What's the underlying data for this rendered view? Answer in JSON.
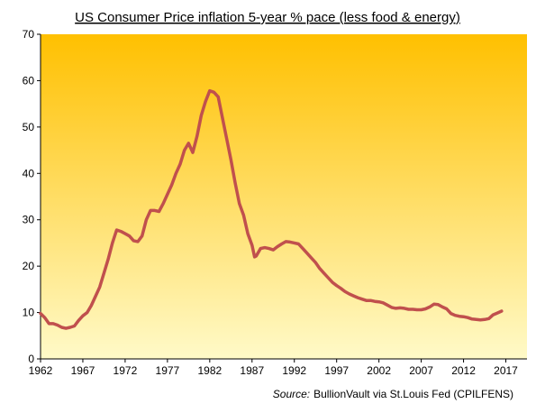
{
  "chart_data": {
    "type": "line",
    "title": "US Consumer Price inflation 5-year % pace (less food & energy)",
    "source_label": "Source:",
    "source_text": "BullionVault via St.Louis Fed (CPILFENS)",
    "xlim": [
      1962,
      2019.5
    ],
    "ylim": [
      0,
      70
    ],
    "x_ticks": [
      "1962",
      "1967",
      "1972",
      "1977",
      "1982",
      "1987",
      "1992",
      "1997",
      "2002",
      "2007",
      "2012",
      "2017"
    ],
    "y_ticks": [
      "0",
      "10",
      "20",
      "30",
      "40",
      "50",
      "60",
      "70"
    ],
    "grid": false,
    "legend": "none",
    "background_gradient": [
      "#ffc000",
      "#fffac8"
    ],
    "series": [
      {
        "color": "#c0504d",
        "x": [
          1962.0,
          1962.5,
          1963.0,
          1963.5,
          1964.0,
          1964.5,
          1965.0,
          1965.5,
          1966.0,
          1966.5,
          1967.0,
          1967.5,
          1968.0,
          1968.5,
          1969.0,
          1969.5,
          1970.0,
          1970.5,
          1971.0,
          1971.5,
          1972.0,
          1972.5,
          1973.0,
          1973.5,
          1974.0,
          1974.5,
          1975.0,
          1975.5,
          1976.0,
          1976.5,
          1977.0,
          1977.5,
          1978.0,
          1978.5,
          1979.0,
          1979.5,
          1980.0,
          1980.5,
          1981.0,
          1981.5,
          1982.0,
          1982.5,
          1983.0,
          1983.5,
          1984.0,
          1984.5,
          1985.0,
          1985.5,
          1986.0,
          1986.5,
          1987.0,
          1987.3,
          1987.5,
          1988.0,
          1988.5,
          1989.0,
          1989.5,
          1990.0,
          1990.5,
          1991.0,
          1991.5,
          1992.0,
          1992.5,
          1993.0,
          1993.5,
          1994.0,
          1994.5,
          1995.0,
          1995.5,
          1996.0,
          1996.5,
          1997.0,
          1997.5,
          1998.0,
          1998.5,
          1999.0,
          1999.5,
          2000.0,
          2000.5,
          2001.0,
          2001.5,
          2002.0,
          2002.5,
          2003.0,
          2003.5,
          2004.0,
          2004.5,
          2005.0,
          2005.5,
          2006.0,
          2006.5,
          2007.0,
          2007.5,
          2008.0,
          2008.5,
          2009.0,
          2009.5,
          2010.0,
          2010.5,
          2011.0,
          2011.5,
          2012.0,
          2012.5,
          2013.0,
          2013.5,
          2014.0,
          2014.5,
          2015.0,
          2015.5,
          2016.0,
          2016.5
        ],
        "y": [
          9.8,
          8.9,
          7.6,
          7.6,
          7.3,
          6.8,
          6.6,
          6.8,
          7.1,
          8.3,
          9.3,
          10.0,
          11.5,
          13.5,
          15.5,
          18.5,
          21.5,
          25.0,
          27.8,
          27.5,
          27.0,
          26.5,
          25.5,
          25.3,
          26.5,
          30.0,
          32.0,
          32.0,
          31.8,
          33.5,
          35.5,
          37.5,
          40.0,
          42.0,
          45.0,
          46.5,
          44.5,
          48.0,
          52.5,
          55.5,
          57.8,
          57.5,
          56.5,
          52.0,
          47.5,
          43.0,
          38.0,
          33.5,
          31.0,
          27.0,
          24.5,
          22.0,
          22.2,
          23.8,
          24.0,
          23.8,
          23.5,
          24.2,
          24.8,
          25.3,
          25.2,
          25.0,
          24.8,
          23.8,
          22.8,
          21.8,
          20.8,
          19.5,
          18.5,
          17.5,
          16.5,
          15.8,
          15.2,
          14.5,
          14.0,
          13.6,
          13.2,
          12.9,
          12.6,
          12.6,
          12.4,
          12.3,
          12.1,
          11.6,
          11.1,
          10.9,
          11.0,
          10.9,
          10.7,
          10.7,
          10.6,
          10.6,
          10.8,
          11.2,
          11.8,
          11.7,
          11.2,
          10.8,
          9.8,
          9.4,
          9.2,
          9.1,
          8.9,
          8.6,
          8.5,
          8.4,
          8.5,
          8.7,
          9.5,
          9.9,
          10.3
        ]
      }
    ]
  }
}
